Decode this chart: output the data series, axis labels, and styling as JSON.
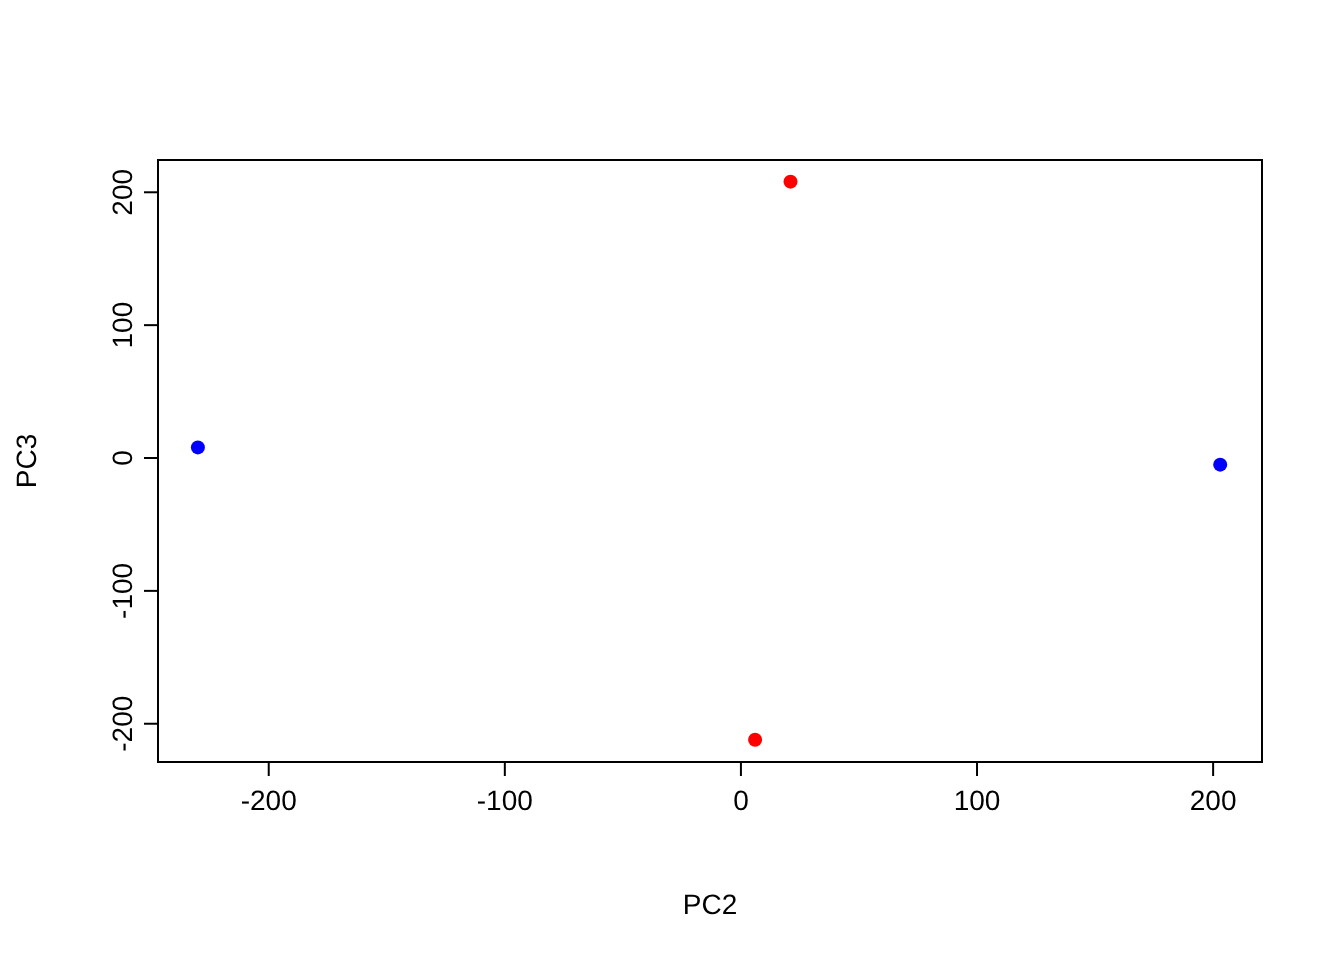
{
  "chart_data": {
    "type": "scatter",
    "xlabel": "PC2",
    "ylabel": "PC3",
    "series": [
      {
        "color": "#0000ff",
        "x": [
          -230,
          203
        ],
        "values": [
          8,
          -5
        ]
      },
      {
        "color": "#ff0000",
        "x": [
          21,
          6
        ],
        "values": [
          208,
          -212
        ]
      }
    ],
    "xlim": [
      -246.9,
      220.7
    ],
    "ylim": [
      -228.8,
      224.3
    ],
    "xticks": [
      -200,
      -100,
      0,
      100,
      200
    ],
    "yticks": [
      -200,
      -100,
      0,
      100,
      200
    ],
    "marker": "circle",
    "grid": false
  }
}
